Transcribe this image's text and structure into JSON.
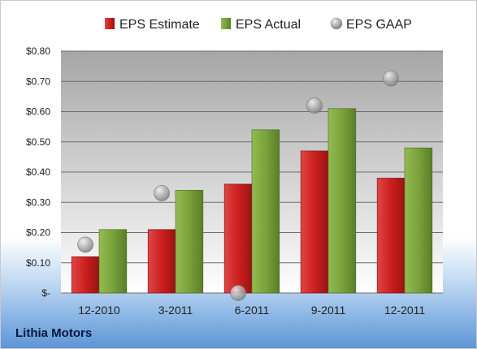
{
  "chart_data": {
    "type": "bar",
    "categories": [
      "12-2010",
      "3-2011",
      "6-2011",
      "9-2011",
      "12-2011"
    ],
    "series": [
      {
        "name": "EPS Estimate",
        "type": "bar",
        "color": "#cc1f1f",
        "values": [
          0.12,
          0.21,
          0.36,
          0.47,
          0.38
        ]
      },
      {
        "name": "EPS Actual",
        "type": "bar",
        "color": "#79a23a",
        "values": [
          0.21,
          0.34,
          0.54,
          0.61,
          0.48
        ]
      },
      {
        "name": "EPS GAAP",
        "type": "scatter",
        "color": "#a9a9a9",
        "values": [
          0.16,
          0.33,
          0.0,
          0.62,
          0.71
        ]
      }
    ],
    "y_ticks": [
      "$-",
      "$0.10",
      "$0.20",
      "$0.30",
      "$0.40",
      "$0.50",
      "$0.60",
      "$0.70",
      "$0.80"
    ],
    "ylim": [
      0,
      0.8
    ],
    "legend_position": "top",
    "grid": true
  },
  "footer": {
    "company": "Lithia Motors"
  }
}
